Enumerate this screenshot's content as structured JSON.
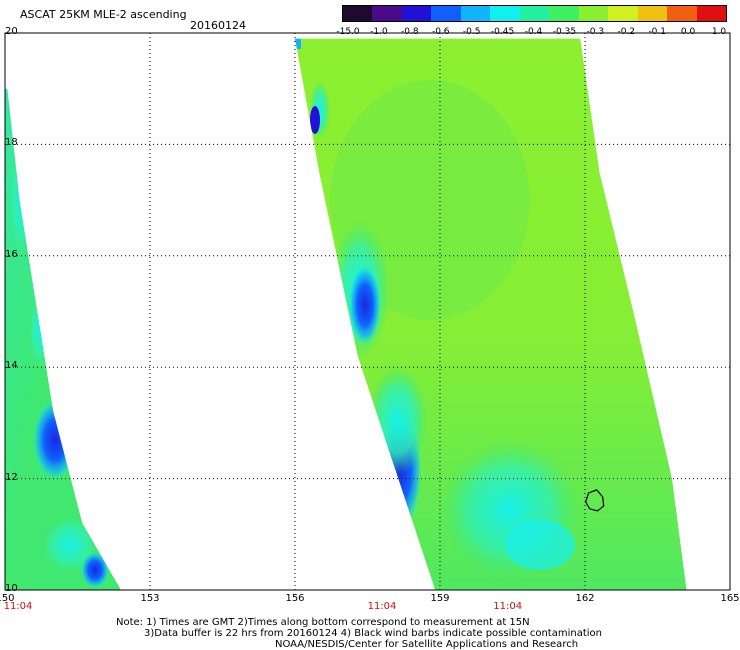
{
  "header": {
    "title": "ASCAT 25KM MLE-2 ascending",
    "date": "20160124"
  },
  "colorbar": {
    "labels": [
      "-15.0",
      "-1.0",
      "-0.8",
      "-0.6",
      "-0.5",
      "-0.45",
      "-0.4",
      "-0.35",
      "-0.3",
      "-0.2",
      "-0.1",
      "0.0",
      "1.0"
    ],
    "colors": [
      "#1e0a2e",
      "#4a0a8c",
      "#2010d8",
      "#1060ff",
      "#10b4ff",
      "#10f0f0",
      "#20f0a0",
      "#40f060",
      "#88f030",
      "#d0f020",
      "#f0c010",
      "#f06010",
      "#e01010"
    ]
  },
  "axes": {
    "lon_ticks": [
      "150",
      "153",
      "156",
      "159",
      "162",
      "165"
    ],
    "lat_ticks": [
      "20",
      "18",
      "16",
      "14",
      "12",
      "10"
    ],
    "time_labels": [
      {
        "lon": 150,
        "text": "11:04"
      },
      {
        "lon": 157.8,
        "text": "11:04"
      },
      {
        "lon": 160.4,
        "text": "11:04"
      }
    ]
  },
  "map_data": {
    "lon_range": [
      150,
      165
    ],
    "lat_range": [
      10,
      20
    ],
    "swaths": [
      {
        "name": "west-swath",
        "polygon": [
          [
            150.0,
            19.0
          ],
          [
            150.05,
            19.0
          ],
          [
            150.3,
            17.0
          ],
          [
            151.0,
            13.2
          ],
          [
            151.6,
            11.2
          ],
          [
            152.4,
            10.0
          ],
          [
            150.0,
            10.0
          ]
        ]
      },
      {
        "name": "east-swath",
        "polygon": [
          [
            156.0,
            19.9
          ],
          [
            161.9,
            19.9
          ],
          [
            162.3,
            17.5
          ],
          [
            163.0,
            15.0
          ],
          [
            163.8,
            12.0
          ],
          [
            164.1,
            10.0
          ],
          [
            158.9,
            10.0
          ],
          [
            157.3,
            14.2
          ],
          [
            156.5,
            17.5
          ]
        ]
      }
    ],
    "contamination_contour": {
      "lon": 162.2,
      "lat": 11.6
    }
  },
  "notes": {
    "line1": "Note: 1) Times are GMT 2)Times along bottom correspond to measurement at 15N",
    "line2": "3)Data buffer is 22 hrs from 20160124 4) Black wind barbs indicate possible contamination",
    "line3": "NOAA/NESDIS/Center for Satellite Applications and Research"
  }
}
